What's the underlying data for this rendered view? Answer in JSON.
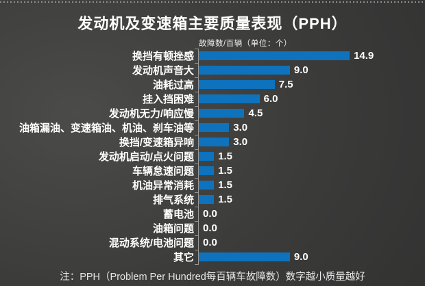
{
  "header": {
    "title": "发动机及变速箱主要质量表现（PPH）",
    "subtitle": "故障数/百辆（单位：个）"
  },
  "chart_data": {
    "type": "bar",
    "orientation": "horizontal",
    "title": "发动机及变速箱主要质量表现（PPH）",
    "xlabel": "故障数/百辆（单位：个）",
    "xlim": [
      0,
      16
    ],
    "grid": false,
    "legend": false,
    "bar_color": "#0e72bd",
    "categories": [
      "换挡有顿挫感",
      "发动机声音大",
      "油耗过高",
      "挂入挡困难",
      "发动机无力/响应慢",
      "油箱漏油、变速箱油、机油、刹车油等",
      "换挡/变速箱异响",
      "发动机启动/点火问题",
      "车辆怠速问题",
      "机油异常消耗",
      "排气系统",
      "蓄电池",
      "油箱问题",
      "混动系统/电池问题",
      "其它"
    ],
    "values": [
      14.9,
      9.0,
      7.5,
      6.0,
      4.5,
      3.0,
      3.0,
      1.5,
      1.5,
      1.5,
      1.5,
      0.0,
      0.0,
      0.0,
      9.0
    ],
    "value_labels": [
      "14.9",
      "9.0",
      "7.5",
      "6.0",
      "4.5",
      "3.0",
      "3.0",
      "1.5",
      "1.5",
      "1.5",
      "1.5",
      "0.0",
      "0.0",
      "0.0",
      "9.0"
    ]
  },
  "footer": {
    "note": "注：PPH（Problem Per Hundred每百辆车故障数）数字越小质量越好"
  },
  "colors": {
    "background_light": "#4b4b49",
    "background_dark": "#2b2b2b",
    "bar": "#0e72bd",
    "axis": "#989898",
    "text": "#ffffff"
  }
}
